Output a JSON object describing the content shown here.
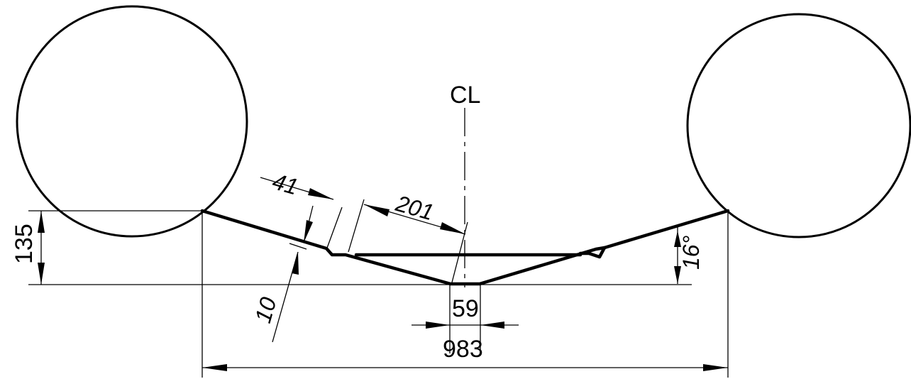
{
  "drawing": {
    "centerline_label": "CL",
    "dimensions": {
      "height_135": "135",
      "total_983": "983",
      "bottom_59": "59",
      "angle_16": "16°",
      "offset_41": "41",
      "length_201": "201",
      "thickness_10": "10"
    },
    "colors": {
      "line": "#000000",
      "background": "#ffffff"
    }
  }
}
